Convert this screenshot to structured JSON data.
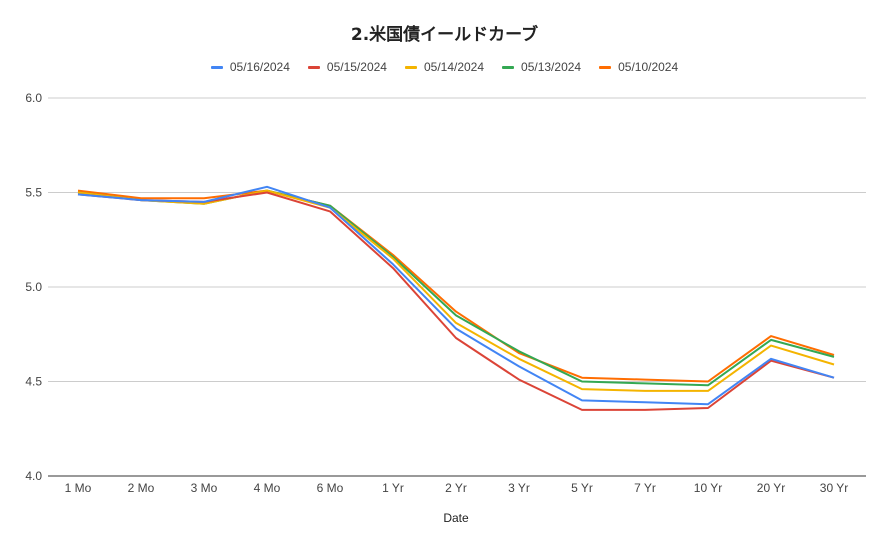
{
  "chart_data": {
    "type": "line",
    "title": "2.米国債イールドカーブ",
    "xlabel": "Date",
    "ylabel": "",
    "ylim": [
      4.0,
      6.0
    ],
    "yticks": [
      "6.0",
      "5.5",
      "5.0",
      "4.5",
      "4.0"
    ],
    "grid": true,
    "legend_position": "top",
    "categories": [
      "1 Mo",
      "2 Mo",
      "3 Mo",
      "4 Mo",
      "6 Mo",
      "1 Yr",
      "2 Yr",
      "3 Yr",
      "5 Yr",
      "7 Yr",
      "10 Yr",
      "20 Yr",
      "30 Yr"
    ],
    "series": [
      {
        "name": "05/16/2024",
        "color": "#4285f4",
        "values": [
          5.49,
          5.46,
          5.45,
          5.53,
          5.42,
          5.12,
          4.78,
          4.58,
          4.4,
          4.39,
          4.38,
          4.62,
          4.52
        ]
      },
      {
        "name": "05/15/2024",
        "color": "#db4437",
        "values": [
          5.49,
          5.46,
          5.45,
          5.5,
          5.4,
          5.1,
          4.73,
          4.51,
          4.35,
          4.35,
          4.36,
          4.61,
          4.52
        ]
      },
      {
        "name": "05/14/2024",
        "color": "#f4b400",
        "values": [
          5.5,
          5.46,
          5.44,
          5.51,
          5.42,
          5.15,
          4.81,
          4.62,
          4.46,
          4.45,
          4.45,
          4.69,
          4.59
        ]
      },
      {
        "name": "05/13/2024",
        "color": "#34a853",
        "values": [
          5.5,
          5.46,
          5.44,
          5.51,
          5.43,
          5.16,
          4.85,
          4.66,
          4.5,
          4.49,
          4.48,
          4.72,
          4.63
        ]
      },
      {
        "name": "05/10/2024",
        "color": "#ff6d01",
        "values": [
          5.51,
          5.47,
          5.47,
          5.51,
          5.43,
          5.17,
          4.87,
          4.65,
          4.52,
          4.51,
          4.5,
          4.74,
          4.64
        ]
      }
    ]
  }
}
